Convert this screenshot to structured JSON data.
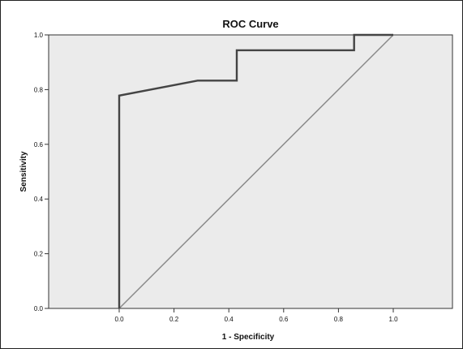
{
  "chart_data": {
    "type": "line",
    "title": "ROC Curve",
    "xlabel": "1 - Specificity",
    "ylabel": "Sensitivity",
    "xlim": [
      0.0,
      1.0
    ],
    "ylim": [
      0.0,
      1.0
    ],
    "x_ticks": [
      "0.0",
      "0.2",
      "0.4",
      "0.6",
      "0.8",
      "1.0"
    ],
    "y_ticks": [
      "0.0",
      "0.2",
      "0.4",
      "0.6",
      "0.8",
      "1.0"
    ],
    "grid": false,
    "legend": "none",
    "series": [
      {
        "x": [
          0.0,
          0.0,
          0.286,
          0.429,
          0.429,
          0.857,
          0.857,
          1.0
        ],
        "y": [
          0.0,
          0.778,
          0.833,
          0.833,
          0.944,
          0.944,
          1.0,
          1.0
        ],
        "color": "#444444"
      },
      {
        "x": [
          0.0,
          1.0
        ],
        "y": [
          0.0,
          1.0
        ],
        "color": "#8a8a8a"
      }
    ],
    "plot_background": "#ebebeb"
  }
}
